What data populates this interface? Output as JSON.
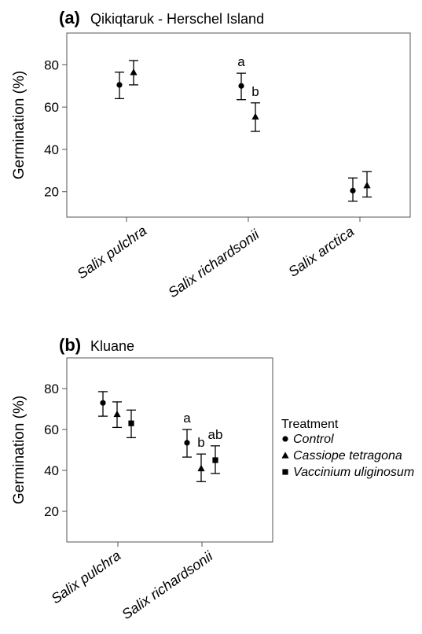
{
  "chart_data": [
    {
      "type": "scatter",
      "panel_tag": "(a)",
      "title": "Qikiqtaruk - Herschel Island",
      "ylabel": "Germination (%)",
      "xlabel": "",
      "ylim": [
        8,
        95
      ],
      "yticks": [
        20,
        40,
        60,
        80
      ],
      "grid": false,
      "categories": [
        "Salix pulchra",
        "Salix richardsonii",
        "Salix arctica"
      ],
      "series": [
        {
          "name": "Control",
          "marker": "circle",
          "values": [
            70.5,
            70,
            20.5
          ],
          "lower": [
            64,
            63.5,
            15.5
          ],
          "upper": [
            76.5,
            76,
            26.5
          ],
          "letters": [
            "",
            "a",
            ""
          ]
        },
        {
          "name": "Cassiope tetragona",
          "marker": "triangle",
          "values": [
            76.5,
            55.5,
            23
          ],
          "lower": [
            70.5,
            48.5,
            17.5
          ],
          "upper": [
            82,
            62,
            29.5
          ],
          "letters": [
            "",
            "b",
            ""
          ]
        }
      ]
    },
    {
      "type": "scatter",
      "panel_tag": "(b)",
      "title": "Kluane",
      "ylabel": "Germination (%)",
      "xlabel": "",
      "ylim": [
        5,
        95
      ],
      "yticks": [
        20,
        40,
        60,
        80
      ],
      "grid": false,
      "legend_position": "right",
      "legend_title": "Treatment",
      "categories": [
        "Salix pulchra",
        "Salix richardsonii"
      ],
      "series": [
        {
          "name": "Control",
          "marker": "circle",
          "values": [
            73,
            53.5
          ],
          "lower": [
            66.5,
            46.5
          ],
          "upper": [
            78.5,
            60
          ],
          "letters": [
            "",
            "a"
          ]
        },
        {
          "name": "Cassiope tetragona",
          "marker": "triangle",
          "values": [
            67.5,
            41
          ],
          "lower": [
            61,
            34.5
          ],
          "upper": [
            73.5,
            48
          ],
          "letters": [
            "",
            "b"
          ]
        },
        {
          "name": "Vaccinium uliginosum",
          "marker": "square",
          "values": [
            63,
            45
          ],
          "lower": [
            56,
            38.5
          ],
          "upper": [
            69.5,
            52
          ],
          "letters": [
            "",
            "ab"
          ]
        }
      ]
    }
  ]
}
